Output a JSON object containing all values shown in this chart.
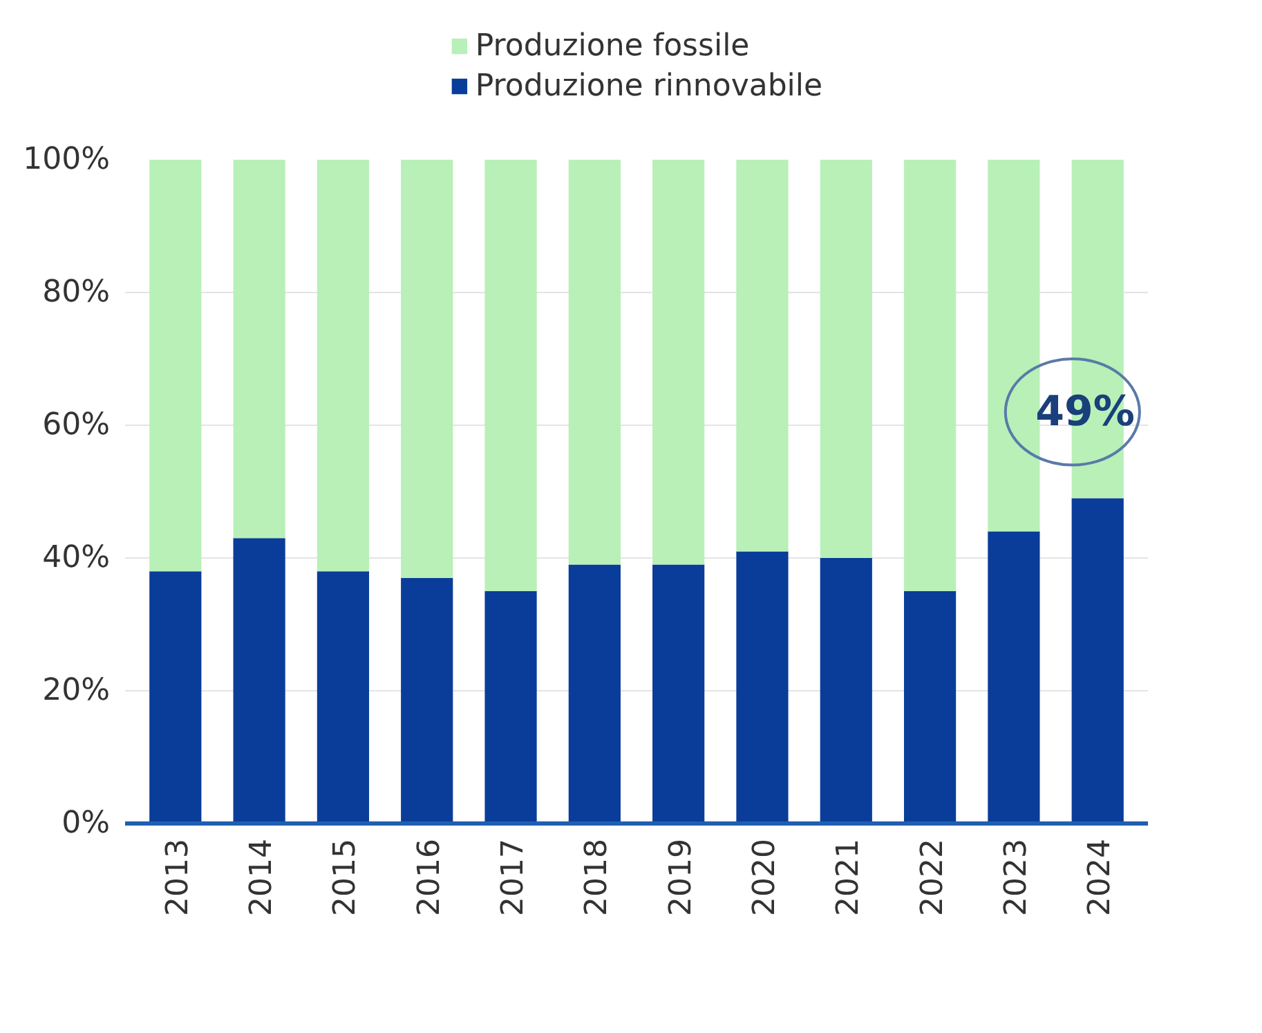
{
  "chart_data": {
    "type": "bar",
    "stacked": true,
    "categories": [
      "2013",
      "2014",
      "2015",
      "2016",
      "2017",
      "2018",
      "2019",
      "2020",
      "2021",
      "2022",
      "2023",
      "2024"
    ],
    "series": [
      {
        "name": "Produzione rinnovabile",
        "color": "#0a3d99",
        "values": [
          38,
          43,
          38,
          37,
          35,
          39,
          39,
          41,
          40,
          35,
          44,
          49
        ]
      },
      {
        "name": "Produzione fossile",
        "color": "#b8f0b8",
        "values": [
          62,
          57,
          62,
          63,
          65,
          61,
          61,
          59,
          60,
          65,
          56,
          51
        ]
      }
    ],
    "ylim": [
      0,
      100
    ],
    "yticks": [
      {
        "value": 0,
        "label": "0%"
      },
      {
        "value": 20,
        "label": "20%"
      },
      {
        "value": 40,
        "label": "40%"
      },
      {
        "value": 60,
        "label": "60%"
      },
      {
        "value": 80,
        "label": "80%"
      },
      {
        "value": 100,
        "label": "100%"
      }
    ],
    "annotations": [
      {
        "text": "49%",
        "x": "2024",
        "y": 49
      }
    ],
    "grid": "y",
    "legend": "top"
  }
}
